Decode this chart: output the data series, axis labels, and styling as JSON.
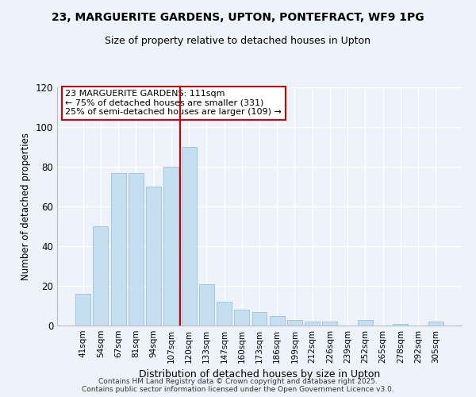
{
  "title": "23, MARGUERITE GARDENS, UPTON, PONTEFRACT, WF9 1PG",
  "subtitle": "Size of property relative to detached houses in Upton",
  "xlabel": "Distribution of detached houses by size in Upton",
  "ylabel": "Number of detached properties",
  "bar_labels": [
    "41sqm",
    "54sqm",
    "67sqm",
    "81sqm",
    "94sqm",
    "107sqm",
    "120sqm",
    "133sqm",
    "147sqm",
    "160sqm",
    "173sqm",
    "186sqm",
    "199sqm",
    "212sqm",
    "226sqm",
    "239sqm",
    "252sqm",
    "265sqm",
    "278sqm",
    "292sqm",
    "305sqm"
  ],
  "bar_values": [
    16,
    50,
    77,
    77,
    70,
    80,
    90,
    21,
    12,
    8,
    7,
    5,
    3,
    2,
    2,
    0,
    3,
    0,
    1,
    0,
    2
  ],
  "bar_color": "#c5dff0",
  "bar_edge_color": "#a0c8e0",
  "vline_pos": 5.5,
  "vline_color": "#cc0000",
  "annotation_title": "23 MARGUERITE GARDENS: 111sqm",
  "annotation_line1": "← 75% of detached houses are smaller (331)",
  "annotation_line2": "25% of semi-detached houses are larger (109) →",
  "ylim": [
    0,
    120
  ],
  "yticks": [
    0,
    20,
    40,
    60,
    80,
    100,
    120
  ],
  "footer1": "Contains HM Land Registry data © Crown copyright and database right 2025.",
  "footer2": "Contains public sector information licensed under the Open Government Licence v3.0.",
  "bg_color": "#eef2fb",
  "grid_color": "#ffffff"
}
